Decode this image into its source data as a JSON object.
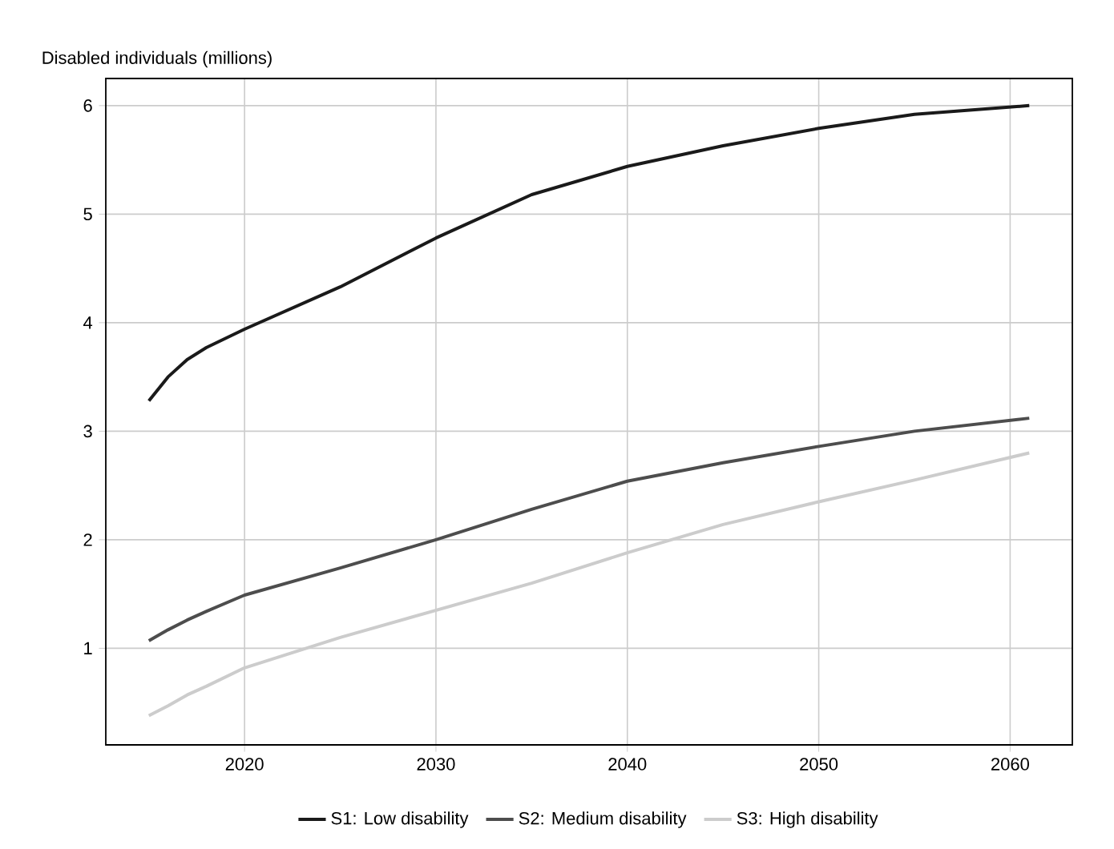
{
  "chart_data": {
    "type": "line",
    "ylabel": "Disabled individuals (millions)",
    "xlim": [
      2012.75,
      2063.25
    ],
    "xticks": [
      2020,
      2030,
      2040,
      2050,
      2060
    ],
    "ylim": [
      0.11,
      6.25
    ],
    "yticks": [
      1,
      2,
      3,
      4,
      5,
      6
    ],
    "grid": true,
    "legend": "bottom",
    "line_style": "solid",
    "marker": "none",
    "x": [
      2015,
      2016,
      2017,
      2018,
      2020,
      2025,
      2030,
      2035,
      2040,
      2045,
      2050,
      2055,
      2061
    ],
    "series": [
      {
        "name": "S1: Low disability",
        "color": "#1a1a1a",
        "values": [
          3.28,
          3.5,
          3.66,
          3.77,
          3.94,
          4.33,
          4.78,
          5.18,
          5.44,
          5.63,
          5.79,
          5.92,
          6.0
        ]
      },
      {
        "name": "S2: Medium disability",
        "color": "#4d4d4d",
        "values": [
          1.07,
          1.17,
          1.26,
          1.34,
          1.49,
          1.74,
          2.0,
          2.28,
          2.54,
          2.71,
          2.86,
          3.0,
          3.12
        ]
      },
      {
        "name": "S3: High disability",
        "color": "#cccccc",
        "values": [
          0.38,
          0.47,
          0.57,
          0.65,
          0.82,
          1.1,
          1.35,
          1.6,
          1.88,
          2.14,
          2.35,
          2.55,
          2.8
        ]
      }
    ]
  }
}
